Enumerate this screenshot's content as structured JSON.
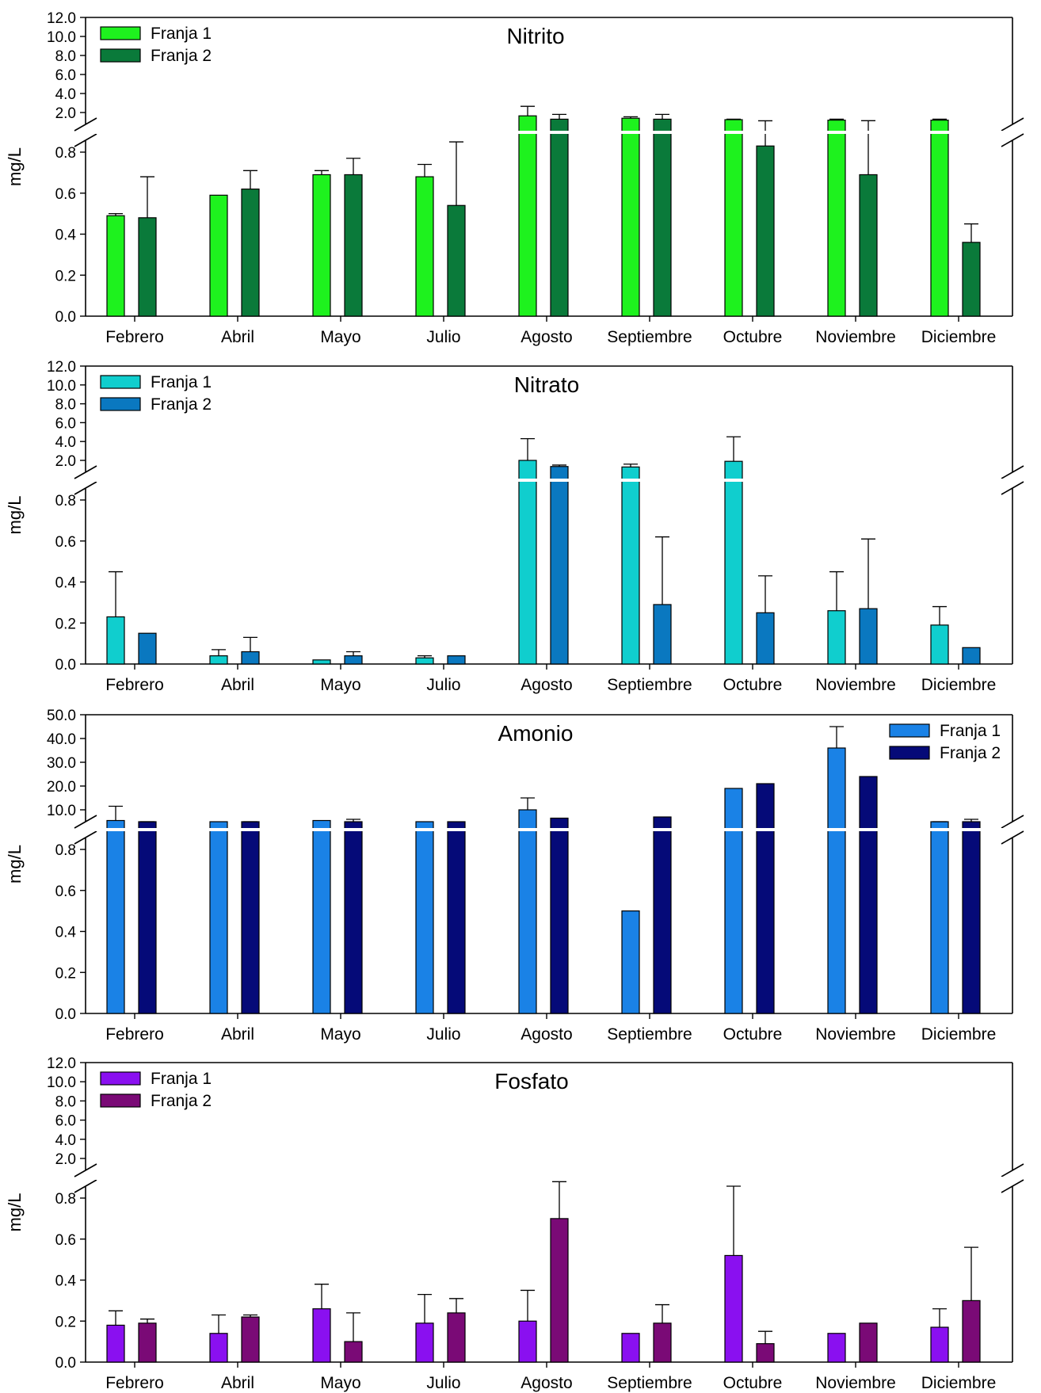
{
  "chart_data": [
    {
      "type": "bar",
      "title": "Nitrito",
      "xlabel": "",
      "ylabel": "mg/L",
      "categories": [
        "Febrero",
        "Abril",
        "Mayo",
        "Julio",
        "Agosto",
        "Septiembre",
        "Octubre",
        "Noviembre",
        "Diciembre"
      ],
      "y_axis_break": {
        "lower_range": [
          0,
          0.9
        ],
        "upper_range": [
          1.1,
          12.0
        ]
      },
      "lower_ticks": [
        "0.0",
        "0.2",
        "0.4",
        "0.6",
        "0.8"
      ],
      "upper_ticks": [
        "2.0",
        "4.0",
        "6.0",
        "8.0",
        "10.0",
        "12.0"
      ],
      "legend_position": "top-left",
      "series": [
        {
          "name": "Franja 1",
          "color": "#1ef21e",
          "values": [
            0.49,
            0.59,
            0.69,
            0.68,
            1.65,
            1.4,
            1.25,
            1.2,
            1.2
          ],
          "errors": [
            0.01,
            0.0,
            0.02,
            0.06,
            1.0,
            0.15,
            0.05,
            0.1,
            0.1
          ]
        },
        {
          "name": "Franja 2",
          "color": "#0a7a3a",
          "values": [
            0.48,
            0.62,
            0.69,
            0.54,
            1.3,
            1.3,
            0.83,
            0.69,
            0.36
          ],
          "errors": [
            0.2,
            0.09,
            0.08,
            0.31,
            0.5,
            0.5,
            0.3,
            0.45,
            0.09
          ]
        }
      ]
    },
    {
      "type": "bar",
      "title": "Nitrato",
      "xlabel": "",
      "ylabel": "mg/L",
      "categories": [
        "Febrero",
        "Abril",
        "Mayo",
        "Julio",
        "Agosto",
        "Septiembre",
        "Octubre",
        "Noviembre",
        "Diciembre"
      ],
      "y_axis_break": {
        "lower_range": [
          0,
          0.9
        ],
        "upper_range": [
          1.1,
          12.0
        ]
      },
      "lower_ticks": [
        "0.0",
        "0.2",
        "0.4",
        "0.6",
        "0.8"
      ],
      "upper_ticks": [
        "2.0",
        "4.0",
        "6.0",
        "8.0",
        "10.0",
        "12.0"
      ],
      "legend_position": "top-left",
      "series": [
        {
          "name": "Franja 1",
          "color": "#10cece",
          "values": [
            0.23,
            0.04,
            0.02,
            0.03,
            2.0,
            1.3,
            1.9,
            0.26,
            0.19
          ],
          "errors": [
            0.22,
            0.03,
            0.0,
            0.01,
            2.3,
            0.3,
            2.6,
            0.19,
            0.09
          ]
        },
        {
          "name": "Franja 2",
          "color": "#0a78c0",
          "values": [
            0.15,
            0.06,
            0.04,
            0.04,
            1.35,
            0.29,
            0.25,
            0.27,
            0.08
          ],
          "errors": [
            0.0,
            0.07,
            0.02,
            0.0,
            0.15,
            0.33,
            0.18,
            0.34,
            0.0
          ]
        }
      ]
    },
    {
      "type": "bar",
      "title": "Amonio",
      "xlabel": "",
      "ylabel": "mg/L",
      "categories": [
        "Febrero",
        "Abril",
        "Mayo",
        "Julio",
        "Agosto",
        "Septiembre",
        "Octubre",
        "Noviembre",
        "Diciembre"
      ],
      "y_axis_break": {
        "lower_range": [
          0,
          0.9
        ],
        "upper_range": [
          1.1,
          50.0
        ]
      },
      "lower_ticks": [
        "0.0",
        "0.2",
        "0.4",
        "0.6",
        "0.8"
      ],
      "upper_ticks": [
        "10.0",
        "20.0",
        "30.0",
        "40.0",
        "50.0"
      ],
      "legend_position": "top-right",
      "series": [
        {
          "name": "Franja 1",
          "color": "#1a82e6",
          "values": [
            5.5,
            3.5,
            5.5,
            1.5,
            10.0,
            0.5,
            19.0,
            36.0,
            2.0
          ],
          "errors": [
            6.0,
            0.0,
            0.0,
            0.0,
            5.0,
            0.0,
            0.0,
            9.0,
            1.5
          ]
        },
        {
          "name": "Franja 2",
          "color": "#050a78",
          "values": [
            3.5,
            2.0,
            4.0,
            1.5,
            6.5,
            7.0,
            21.0,
            24.0,
            4.0
          ],
          "errors": [
            1.5,
            2.0,
            2.0,
            0.0,
            0.0,
            0.0,
            0.0,
            0.0,
            2.0
          ]
        }
      ]
    },
    {
      "type": "bar",
      "title": "Fosfato",
      "xlabel": "",
      "ylabel": "mg/L",
      "categories": [
        "Febrero",
        "Abril",
        "Mayo",
        "Julio",
        "Agosto",
        "Septiembre",
        "Octubre",
        "Noviembre",
        "Diciembre"
      ],
      "y_axis_break": {
        "lower_range": [
          0,
          0.9
        ],
        "upper_range": [
          1.1,
          12.0
        ]
      },
      "lower_ticks": [
        "0.0",
        "0.2",
        "0.4",
        "0.6",
        "0.8"
      ],
      "upper_ticks": [
        "2.0",
        "4.0",
        "6.0",
        "8.0",
        "10.0",
        "12.0"
      ],
      "legend_position": "top-left",
      "series": [
        {
          "name": "Franja 1",
          "color": "#8a10f0",
          "values": [
            0.18,
            0.14,
            0.26,
            0.19,
            0.2,
            0.14,
            0.52,
            0.14,
            0.17
          ],
          "errors": [
            0.07,
            0.09,
            0.12,
            0.14,
            0.15,
            0.0,
            0.4,
            0.0,
            0.09
          ]
        },
        {
          "name": "Franja 2",
          "color": "#7a0a76",
          "values": [
            0.19,
            0.22,
            0.1,
            0.24,
            0.7,
            0.19,
            0.09,
            0.19,
            0.3
          ],
          "errors": [
            0.02,
            0.01,
            0.14,
            0.07,
            0.18,
            0.09,
            0.06,
            0.0,
            0.26
          ]
        }
      ]
    }
  ]
}
